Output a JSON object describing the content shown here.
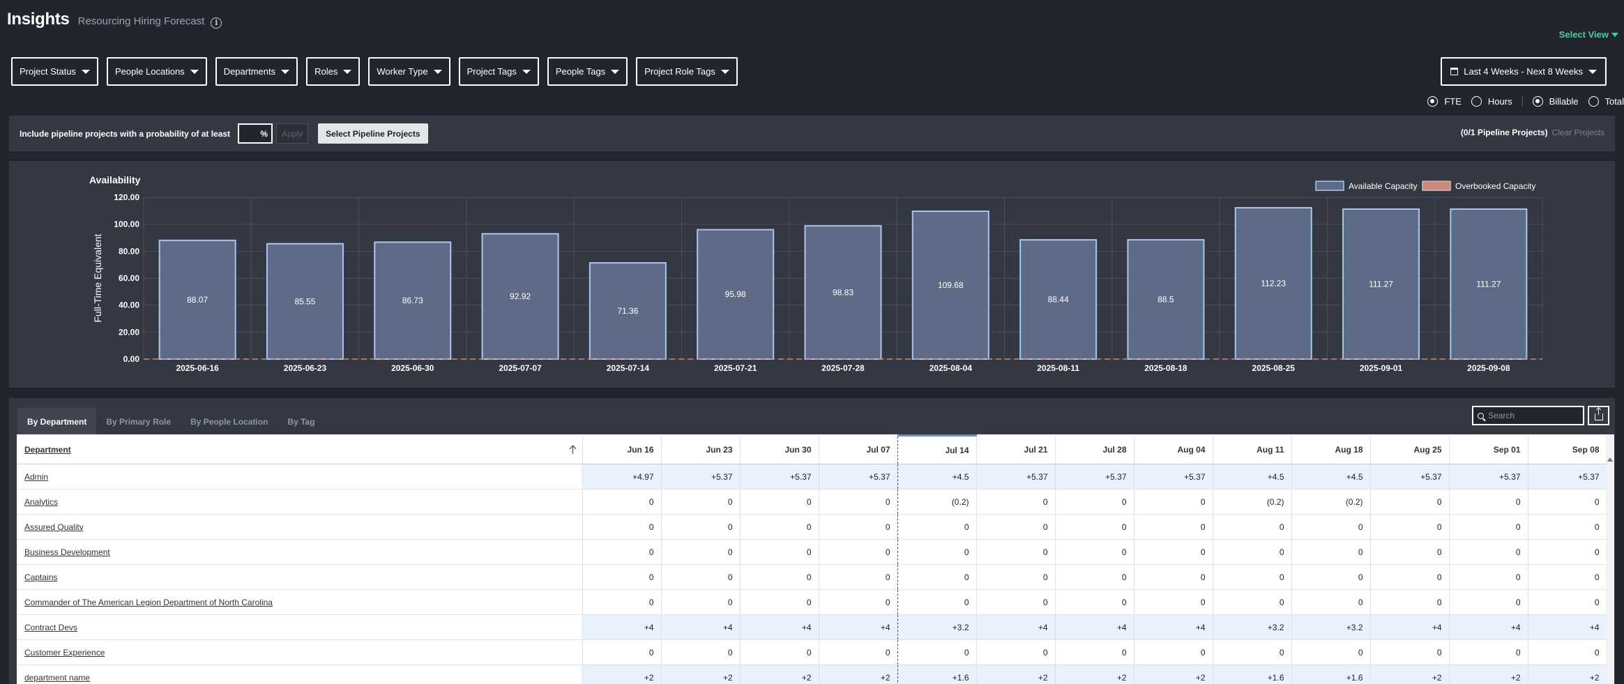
{
  "header": {
    "title": "Insights",
    "subtitle": "Resourcing Hiring Forecast",
    "info_icon": "info-icon"
  },
  "select_view": {
    "label": "Select View"
  },
  "filters": [
    {
      "label": "Project Status"
    },
    {
      "label": "People Locations"
    },
    {
      "label": "Departments"
    },
    {
      "label": "Roles"
    },
    {
      "label": "Worker Type"
    },
    {
      "label": "Project Tags"
    },
    {
      "label": "People Tags"
    },
    {
      "label": "Project Role Tags"
    }
  ],
  "date_range": {
    "label": "Last 4 Weeks - Next 8 Weeks"
  },
  "units": {
    "fte": "FTE",
    "hours": "Hours",
    "selected": "FTE"
  },
  "billing": {
    "billable": "Billable",
    "total": "Total",
    "selected": "Billable"
  },
  "pipeline": {
    "label": "Include pipeline projects with a probability of at least",
    "percent_value": "",
    "percent_suffix": "%",
    "apply_label": "Apply",
    "select_label": "Select Pipeline Projects",
    "count_label": "(0/1 Pipeline Projects)",
    "clear_label": "Clear Projects"
  },
  "colors": {
    "accent_green": "#41d39e",
    "bar_fill": "#5d6b86",
    "bar_stroke": "#a9c6f2",
    "overbooked_fill": "#c98a7e"
  },
  "chart_data": {
    "type": "bar",
    "title": "Availability",
    "ylabel": "Full-Time Equivalent",
    "xlabel": "",
    "ylim": [
      0,
      120
    ],
    "yticks": [
      "0.00",
      "20.00",
      "40.00",
      "60.00",
      "80.00",
      "100.00",
      "120.00"
    ],
    "categories": [
      "2025-06-16",
      "2025-06-23",
      "2025-06-30",
      "2025-07-07",
      "2025-07-14",
      "2025-07-21",
      "2025-07-28",
      "2025-08-04",
      "2025-08-11",
      "2025-08-18",
      "2025-08-25",
      "2025-09-01",
      "2025-09-08"
    ],
    "series": [
      {
        "name": "Available Capacity",
        "values": [
          88.07,
          85.55,
          86.73,
          92.92,
          71.36,
          95.98,
          98.83,
          109.68,
          88.44,
          88.5,
          112.23,
          111.27,
          111.27
        ]
      },
      {
        "name": "Overbooked Capacity",
        "values": [
          0,
          0,
          0,
          0,
          0,
          0,
          0,
          0,
          0,
          0,
          0,
          0,
          0
        ]
      }
    ],
    "grid": true,
    "legend": "top-right"
  },
  "tabs": [
    {
      "label": "By Department",
      "active": true
    },
    {
      "label": "By Primary Role",
      "active": false
    },
    {
      "label": "By People Location",
      "active": false
    },
    {
      "label": "By Tag",
      "active": false
    }
  ],
  "search": {
    "placeholder": "Search"
  },
  "table": {
    "first_header": "Department",
    "columns": [
      "Jun 16",
      "Jun 23",
      "Jun 30",
      "Jul 07",
      "Jul 14",
      "Jul 21",
      "Jul 28",
      "Aug 04",
      "Aug 11",
      "Aug 18",
      "Aug 25",
      "Sep 01",
      "Sep 08"
    ],
    "current_column": 4,
    "rows": [
      {
        "name": "Admin",
        "highlight": true,
        "values": [
          "+4.97",
          "+5.37",
          "+5.37",
          "+5.37",
          "+4.5",
          "+5.37",
          "+5.37",
          "+5.37",
          "+4.5",
          "+4.5",
          "+5.37",
          "+5.37",
          "+5.37"
        ]
      },
      {
        "name": "Analytics",
        "highlight": false,
        "values": [
          "0",
          "0",
          "0",
          "0",
          "(0.2)",
          "0",
          "0",
          "0",
          "(0.2)",
          "(0.2)",
          "0",
          "0",
          "0"
        ]
      },
      {
        "name": "Assured Quality",
        "highlight": false,
        "values": [
          "0",
          "0",
          "0",
          "0",
          "0",
          "0",
          "0",
          "0",
          "0",
          "0",
          "0",
          "0",
          "0"
        ]
      },
      {
        "name": "Business Development",
        "highlight": false,
        "values": [
          "0",
          "0",
          "0",
          "0",
          "0",
          "0",
          "0",
          "0",
          "0",
          "0",
          "0",
          "0",
          "0"
        ]
      },
      {
        "name": "Captains",
        "highlight": false,
        "values": [
          "0",
          "0",
          "0",
          "0",
          "0",
          "0",
          "0",
          "0",
          "0",
          "0",
          "0",
          "0",
          "0"
        ]
      },
      {
        "name": "Commander of The American Legion Department of North Carolina",
        "highlight": false,
        "values": [
          "0",
          "0",
          "0",
          "0",
          "0",
          "0",
          "0",
          "0",
          "0",
          "0",
          "0",
          "0",
          "0"
        ]
      },
      {
        "name": "Contract Devs",
        "highlight": true,
        "values": [
          "+4",
          "+4",
          "+4",
          "+4",
          "+3.2",
          "+4",
          "+4",
          "+4",
          "+3.2",
          "+3.2",
          "+4",
          "+4",
          "+4"
        ]
      },
      {
        "name": "Customer Experience",
        "highlight": false,
        "values": [
          "0",
          "0",
          "0",
          "0",
          "0",
          "0",
          "0",
          "0",
          "0",
          "0",
          "0",
          "0",
          "0"
        ]
      },
      {
        "name": "department name",
        "highlight": true,
        "values": [
          "+2",
          "+2",
          "+2",
          "+2",
          "+1.6",
          "+2",
          "+2",
          "+2",
          "+1.6",
          "+1.6",
          "+2",
          "+2",
          "+2"
        ]
      }
    ]
  }
}
